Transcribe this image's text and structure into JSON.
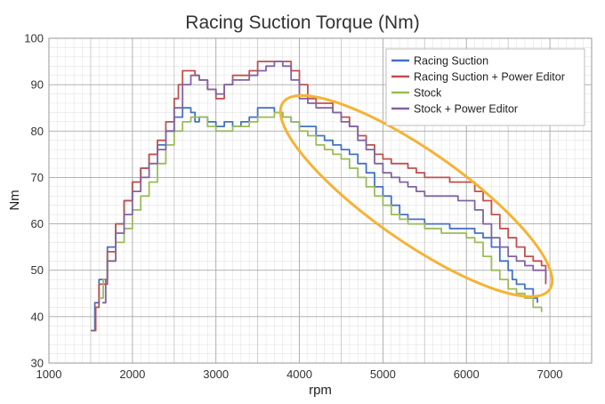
{
  "chart_data": {
    "type": "line",
    "title": "Racing Suction Torque (Nm)",
    "xlabel": "rpm",
    "ylabel": "Nm",
    "xlim": [
      1000,
      7500
    ],
    "ylim": [
      30,
      100
    ],
    "xticks": [
      1000,
      2000,
      3000,
      4000,
      5000,
      6000,
      7000
    ],
    "yticks": [
      30,
      40,
      50,
      60,
      70,
      80,
      90,
      100
    ],
    "grid": "major and minor",
    "legend_position": "top-right",
    "highlight": {
      "shape": "ellipse",
      "color": "#F5B335",
      "center": [
        5400,
        66
      ],
      "note": "tilted ellipse around high-rpm region"
    },
    "series": [
      {
        "name": "Racing Suction",
        "color": "#4472C4",
        "points": [
          [
            1500,
            37
          ],
          [
            1550,
            43
          ],
          [
            1600,
            48
          ],
          [
            1700,
            55
          ],
          [
            1800,
            60
          ],
          [
            1900,
            65
          ],
          [
            2000,
            69
          ],
          [
            2100,
            72
          ],
          [
            2200,
            75
          ],
          [
            2300,
            77
          ],
          [
            2400,
            80
          ],
          [
            2500,
            83
          ],
          [
            2600,
            85
          ],
          [
            2700,
            84
          ],
          [
            2750,
            82
          ],
          [
            2800,
            83
          ],
          [
            2900,
            82
          ],
          [
            3000,
            81
          ],
          [
            3100,
            82
          ],
          [
            3200,
            81
          ],
          [
            3300,
            82
          ],
          [
            3400,
            83
          ],
          [
            3500,
            85
          ],
          [
            3600,
            85
          ],
          [
            3700,
            84
          ],
          [
            3800,
            83
          ],
          [
            3900,
            82
          ],
          [
            4000,
            81
          ],
          [
            4100,
            81
          ],
          [
            4200,
            79
          ],
          [
            4300,
            78
          ],
          [
            4400,
            77
          ],
          [
            4500,
            76
          ],
          [
            4600,
            75
          ],
          [
            4700,
            73
          ],
          [
            4800,
            71
          ],
          [
            4900,
            68
          ],
          [
            5000,
            66
          ],
          [
            5100,
            64
          ],
          [
            5200,
            62
          ],
          [
            5300,
            61
          ],
          [
            5400,
            61
          ],
          [
            5500,
            60
          ],
          [
            5600,
            60
          ],
          [
            5700,
            60
          ],
          [
            5800,
            59
          ],
          [
            5900,
            59
          ],
          [
            6000,
            59
          ],
          [
            6100,
            58
          ],
          [
            6200,
            57
          ],
          [
            6300,
            55
          ],
          [
            6400,
            52
          ],
          [
            6500,
            50
          ],
          [
            6550,
            48
          ],
          [
            6600,
            47
          ],
          [
            6700,
            46
          ],
          [
            6800,
            44
          ],
          [
            6850,
            43
          ]
        ]
      },
      {
        "name": "Racing Suction + Power Editor",
        "color": "#C0504D",
        "points": [
          [
            1520,
            37
          ],
          [
            1560,
            42
          ],
          [
            1600,
            47
          ],
          [
            1700,
            54
          ],
          [
            1800,
            60
          ],
          [
            1900,
            65
          ],
          [
            2000,
            69
          ],
          [
            2100,
            72
          ],
          [
            2200,
            75
          ],
          [
            2300,
            78
          ],
          [
            2400,
            82
          ],
          [
            2500,
            87
          ],
          [
            2550,
            90
          ],
          [
            2600,
            93
          ],
          [
            2700,
            93
          ],
          [
            2750,
            92
          ],
          [
            2800,
            91
          ],
          [
            2900,
            89
          ],
          [
            3000,
            87
          ],
          [
            3100,
            90
          ],
          [
            3200,
            92
          ],
          [
            3300,
            92
          ],
          [
            3400,
            93
          ],
          [
            3500,
            95
          ],
          [
            3600,
            95
          ],
          [
            3700,
            95
          ],
          [
            3800,
            95
          ],
          [
            3900,
            93
          ],
          [
            4000,
            90
          ],
          [
            4100,
            87
          ],
          [
            4200,
            86
          ],
          [
            4300,
            86
          ],
          [
            4400,
            84
          ],
          [
            4500,
            83
          ],
          [
            4600,
            81
          ],
          [
            4700,
            79
          ],
          [
            4800,
            77
          ],
          [
            4900,
            75
          ],
          [
            5000,
            74
          ],
          [
            5100,
            73
          ],
          [
            5200,
            73
          ],
          [
            5300,
            72
          ],
          [
            5400,
            71
          ],
          [
            5500,
            70
          ],
          [
            5600,
            70
          ],
          [
            5700,
            70
          ],
          [
            5800,
            69
          ],
          [
            5900,
            69
          ],
          [
            6000,
            69
          ],
          [
            6100,
            67
          ],
          [
            6200,
            65
          ],
          [
            6300,
            62
          ],
          [
            6400,
            59
          ],
          [
            6500,
            57
          ],
          [
            6600,
            55
          ],
          [
            6700,
            53
          ],
          [
            6800,
            52
          ],
          [
            6900,
            51
          ],
          [
            6950,
            47
          ]
        ]
      },
      {
        "name": "Stock",
        "color": "#9BBB59",
        "points": [
          [
            1600,
            44
          ],
          [
            1650,
            48
          ],
          [
            1700,
            52
          ],
          [
            1800,
            56
          ],
          [
            1900,
            59
          ],
          [
            2000,
            63
          ],
          [
            2100,
            66
          ],
          [
            2200,
            69
          ],
          [
            2300,
            73
          ],
          [
            2400,
            77
          ],
          [
            2500,
            80
          ],
          [
            2600,
            82
          ],
          [
            2700,
            83
          ],
          [
            2800,
            83
          ],
          [
            2900,
            81
          ],
          [
            3000,
            80
          ],
          [
            3100,
            80
          ],
          [
            3200,
            81
          ],
          [
            3300,
            81
          ],
          [
            3400,
            82
          ],
          [
            3500,
            83
          ],
          [
            3600,
            83
          ],
          [
            3700,
            84
          ],
          [
            3800,
            83
          ],
          [
            3900,
            82
          ],
          [
            4000,
            80
          ],
          [
            4100,
            79
          ],
          [
            4200,
            77
          ],
          [
            4300,
            76
          ],
          [
            4400,
            75
          ],
          [
            4500,
            74
          ],
          [
            4600,
            72
          ],
          [
            4700,
            70
          ],
          [
            4800,
            68
          ],
          [
            4900,
            66
          ],
          [
            5000,
            64
          ],
          [
            5100,
            62
          ],
          [
            5200,
            61
          ],
          [
            5300,
            60
          ],
          [
            5400,
            60
          ],
          [
            5500,
            59
          ],
          [
            5600,
            59
          ],
          [
            5700,
            58
          ],
          [
            5800,
            58
          ],
          [
            5900,
            58
          ],
          [
            6000,
            57
          ],
          [
            6100,
            56
          ],
          [
            6200,
            53
          ],
          [
            6300,
            50
          ],
          [
            6400,
            48
          ],
          [
            6500,
            46
          ],
          [
            6600,
            45
          ],
          [
            6700,
            44
          ],
          [
            6800,
            42
          ],
          [
            6900,
            41
          ]
        ]
      },
      {
        "name": "Stock + Power Editor",
        "color": "#8064A2",
        "points": [
          [
            1640,
            43
          ],
          [
            1680,
            48
          ],
          [
            1700,
            52
          ],
          [
            1800,
            58
          ],
          [
            1900,
            62
          ],
          [
            2000,
            67
          ],
          [
            2100,
            70
          ],
          [
            2200,
            73
          ],
          [
            2300,
            76
          ],
          [
            2400,
            80
          ],
          [
            2500,
            85
          ],
          [
            2600,
            90
          ],
          [
            2700,
            92
          ],
          [
            2800,
            91
          ],
          [
            2900,
            89
          ],
          [
            3000,
            88
          ],
          [
            3100,
            90
          ],
          [
            3200,
            91
          ],
          [
            3300,
            91
          ],
          [
            3400,
            92
          ],
          [
            3500,
            93
          ],
          [
            3600,
            94
          ],
          [
            3700,
            95
          ],
          [
            3800,
            94
          ],
          [
            3900,
            91
          ],
          [
            4000,
            87
          ],
          [
            4100,
            86
          ],
          [
            4200,
            85
          ],
          [
            4300,
            85
          ],
          [
            4400,
            84
          ],
          [
            4500,
            82
          ],
          [
            4600,
            81
          ],
          [
            4700,
            78
          ],
          [
            4800,
            76
          ],
          [
            4900,
            73
          ],
          [
            5000,
            71
          ],
          [
            5100,
            70
          ],
          [
            5200,
            69
          ],
          [
            5300,
            68
          ],
          [
            5400,
            67
          ],
          [
            5500,
            66
          ],
          [
            5600,
            66
          ],
          [
            5700,
            66
          ],
          [
            5800,
            66
          ],
          [
            5900,
            65
          ],
          [
            6000,
            65
          ],
          [
            6100,
            63
          ],
          [
            6200,
            60
          ],
          [
            6300,
            57
          ],
          [
            6400,
            55
          ],
          [
            6500,
            53
          ],
          [
            6600,
            52
          ],
          [
            6700,
            51
          ],
          [
            6800,
            50
          ],
          [
            6900,
            50
          ],
          [
            6950,
            48
          ]
        ]
      }
    ]
  }
}
